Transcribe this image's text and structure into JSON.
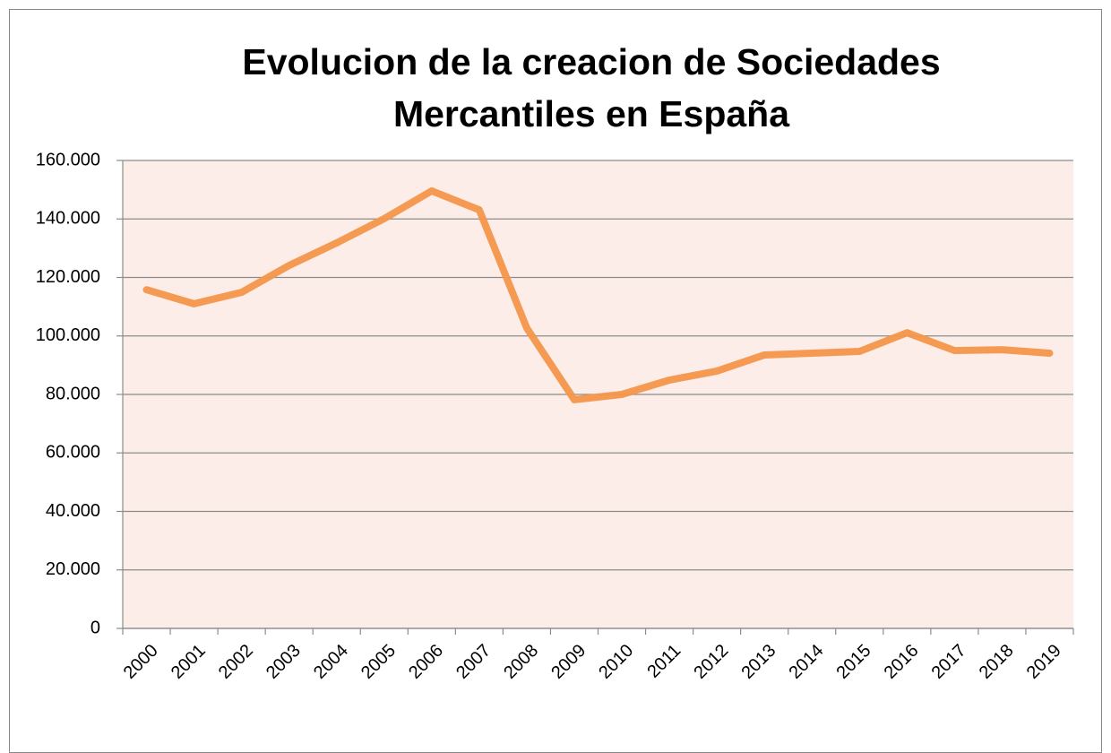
{
  "chart_data": {
    "type": "line",
    "title": "Evolucion de la creacion de Sociedades Mercantiles en España",
    "categories": [
      "2000",
      "2001",
      "2002",
      "2003",
      "2004",
      "2005",
      "2006",
      "2007",
      "2008",
      "2009",
      "2010",
      "2011",
      "2012",
      "2013",
      "2014",
      "2015",
      "2016",
      "2017",
      "2018",
      "2019"
    ],
    "values": [
      115800,
      111000,
      114900,
      124100,
      131800,
      140100,
      149600,
      143100,
      102700,
      78200,
      80000,
      84900,
      88000,
      93500,
      94100,
      94700,
      101100,
      95000,
      95300,
      94100
    ],
    "color": "#f4964a",
    "ylim": [
      0,
      160000
    ],
    "yticks": [
      0,
      {
        "value": 20000,
        "label": "20.000"
      },
      {
        "value": 40000,
        "label": "40.000"
      },
      {
        "value": 60000,
        "label": "60.000"
      },
      {
        "value": 80000,
        "label": "80.000"
      },
      {
        "value": 100000,
        "label": "100.000"
      },
      {
        "value": 120000,
        "label": "120.000"
      },
      {
        "value": 140000,
        "label": "140.000"
      },
      {
        "value": 160000,
        "label": "160.000"
      }
    ],
    "grid": true
  }
}
